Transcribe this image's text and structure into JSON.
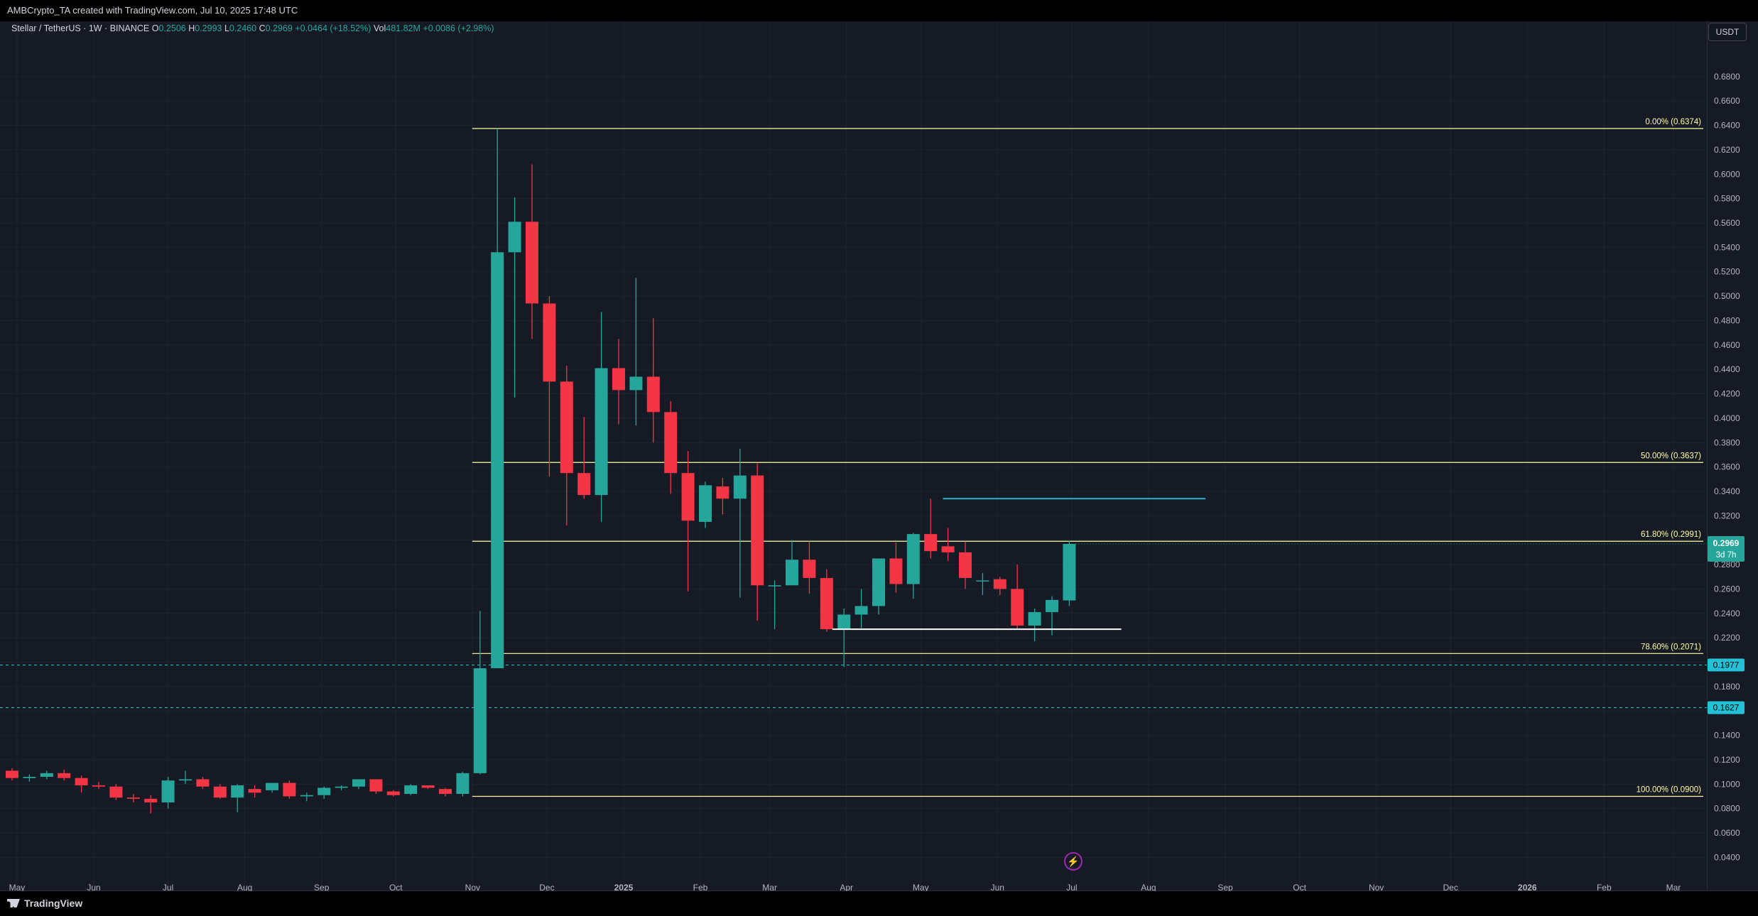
{
  "header": {
    "created_by": "AMBCrypto_TA created with TradingView.com, Jul 10, 2025 17:48 UTC"
  },
  "legend": {
    "symbol": "Stellar / TetherUS · 1W · BINANCE",
    "o_label": "O",
    "o": "0.2506",
    "h_label": "H",
    "h": "0.2993",
    "l_label": "L",
    "l": "0.2460",
    "c_label": "C",
    "c": "0.2969",
    "change": "+0.0464 (+18.52%)",
    "vol_label": "Vol",
    "vol": "481.82M",
    "vol_change": "+0.0086 (+2.98%)"
  },
  "unit_button": "USDT",
  "footer": {
    "brand": "TradingView"
  },
  "colors": {
    "up": "#26a69a",
    "down": "#f23645",
    "fib": "#ffffa0",
    "cyan": "#22c1d6",
    "bg": "#161a25"
  },
  "chart_data": {
    "type": "candlestick",
    "title": "Stellar / TetherUS · 1W · BINANCE",
    "ylim": [
      0.028,
      0.716
    ],
    "y_ticks": [
      "0.6800",
      "0.6600",
      "0.6400",
      "0.6200",
      "0.6000",
      "0.5800",
      "0.5600",
      "0.5400",
      "0.5200",
      "0.5000",
      "0.4800",
      "0.4600",
      "0.4400",
      "0.4200",
      "0.4000",
      "0.3800",
      "0.3600",
      "0.3400",
      "0.3200",
      "0.3000",
      "0.2800",
      "0.2600",
      "0.2400",
      "0.2200",
      "0.2000",
      "0.1800",
      "0.1600",
      "0.1400",
      "0.1200",
      "0.1000",
      "0.0800",
      "0.0600",
      "0.0400"
    ],
    "x_ticks": [
      {
        "label": "May",
        "x": "2024-05-01"
      },
      {
        "label": "Jun",
        "x": "2024-06-01"
      },
      {
        "label": "Jul",
        "x": "2024-07-01"
      },
      {
        "label": "Aug",
        "x": "2024-08-01"
      },
      {
        "label": "Sep",
        "x": "2024-09-01"
      },
      {
        "label": "Oct",
        "x": "2024-10-01"
      },
      {
        "label": "Nov",
        "x": "2024-11-01"
      },
      {
        "label": "Dec",
        "x": "2024-12-01"
      },
      {
        "label": "2025",
        "x": "2025-01-01",
        "bold": true
      },
      {
        "label": "Feb",
        "x": "2025-02-01"
      },
      {
        "label": "Mar",
        "x": "2025-03-01"
      },
      {
        "label": "Apr",
        "x": "2025-04-01"
      },
      {
        "label": "May",
        "x": "2025-05-01"
      },
      {
        "label": "Jun",
        "x": "2025-06-01"
      },
      {
        "label": "Jul",
        "x": "2025-07-01"
      },
      {
        "label": "Aug",
        "x": "2025-08-01"
      },
      {
        "label": "Sep",
        "x": "2025-09-01"
      },
      {
        "label": "Oct",
        "x": "2025-10-01"
      },
      {
        "label": "Nov",
        "x": "2025-11-01"
      },
      {
        "label": "Dec",
        "x": "2025-12-01"
      },
      {
        "label": "2026",
        "x": "2026-01-01",
        "bold": true
      },
      {
        "label": "Feb",
        "x": "2026-02-01"
      },
      {
        "label": "Mar",
        "x": "2026-03-01"
      }
    ],
    "candles": [
      {
        "t": "2024-04-29",
        "o": 0.111,
        "h": 0.113,
        "l": 0.103,
        "c": 0.105
      },
      {
        "t": "2024-05-06",
        "o": 0.105,
        "h": 0.108,
        "l": 0.102,
        "c": 0.106
      },
      {
        "t": "2024-05-13",
        "o": 0.106,
        "h": 0.111,
        "l": 0.104,
        "c": 0.109
      },
      {
        "t": "2024-05-20",
        "o": 0.109,
        "h": 0.112,
        "l": 0.103,
        "c": 0.105
      },
      {
        "t": "2024-05-27",
        "o": 0.105,
        "h": 0.107,
        "l": 0.093,
        "c": 0.099
      },
      {
        "t": "2024-06-03",
        "o": 0.099,
        "h": 0.102,
        "l": 0.096,
        "c": 0.098
      },
      {
        "t": "2024-06-10",
        "o": 0.098,
        "h": 0.1,
        "l": 0.087,
        "c": 0.089
      },
      {
        "t": "2024-06-17",
        "o": 0.089,
        "h": 0.092,
        "l": 0.085,
        "c": 0.088
      },
      {
        "t": "2024-06-24",
        "o": 0.088,
        "h": 0.091,
        "l": 0.076,
        "c": 0.085
      },
      {
        "t": "2024-07-01",
        "o": 0.085,
        "h": 0.106,
        "l": 0.08,
        "c": 0.103
      },
      {
        "t": "2024-07-08",
        "o": 0.103,
        "h": 0.111,
        "l": 0.1,
        "c": 0.104
      },
      {
        "t": "2024-07-15",
        "o": 0.104,
        "h": 0.106,
        "l": 0.096,
        "c": 0.098
      },
      {
        "t": "2024-07-22",
        "o": 0.098,
        "h": 0.1,
        "l": 0.088,
        "c": 0.089
      },
      {
        "t": "2024-07-29",
        "o": 0.089,
        "h": 0.1,
        "l": 0.077,
        "c": 0.099
      },
      {
        "t": "2024-08-05",
        "o": 0.096,
        "h": 0.099,
        "l": 0.089,
        "c": 0.093
      },
      {
        "t": "2024-08-12",
        "o": 0.095,
        "h": 0.1,
        "l": 0.093,
        "c": 0.101
      },
      {
        "t": "2024-08-19",
        "o": 0.101,
        "h": 0.103,
        "l": 0.088,
        "c": 0.09
      },
      {
        "t": "2024-08-26",
        "o": 0.09,
        "h": 0.093,
        "l": 0.086,
        "c": 0.091
      },
      {
        "t": "2024-09-02",
        "o": 0.091,
        "h": 0.098,
        "l": 0.088,
        "c": 0.097
      },
      {
        "t": "2024-09-09",
        "o": 0.097,
        "h": 0.099,
        "l": 0.095,
        "c": 0.098
      },
      {
        "t": "2024-09-16",
        "o": 0.098,
        "h": 0.103,
        "l": 0.096,
        "c": 0.104
      },
      {
        "t": "2024-09-23",
        "o": 0.104,
        "h": 0.104,
        "l": 0.092,
        "c": 0.094
      },
      {
        "t": "2024-09-30",
        "o": 0.094,
        "h": 0.095,
        "l": 0.09,
        "c": 0.091
      },
      {
        "t": "2024-10-07",
        "o": 0.092,
        "h": 0.1,
        "l": 0.091,
        "c": 0.099
      },
      {
        "t": "2024-10-14",
        "o": 0.099,
        "h": 0.099,
        "l": 0.096,
        "c": 0.097
      },
      {
        "t": "2024-10-21",
        "o": 0.096,
        "h": 0.097,
        "l": 0.09,
        "c": 0.092
      },
      {
        "t": "2024-10-28",
        "o": 0.092,
        "h": 0.11,
        "l": 0.09,
        "c": 0.109
      },
      {
        "t": "2024-11-04",
        "o": 0.109,
        "h": 0.242,
        "l": 0.108,
        "c": 0.195
      },
      {
        "t": "2024-11-11",
        "o": 0.195,
        "h": 0.6374,
        "l": 0.195,
        "c": 0.536
      },
      {
        "t": "2024-11-18",
        "o": 0.536,
        "h": 0.581,
        "l": 0.417,
        "c": 0.561
      },
      {
        "t": "2024-11-25",
        "o": 0.561,
        "h": 0.608,
        "l": 0.465,
        "c": 0.494
      },
      {
        "t": "2024-12-02",
        "o": 0.494,
        "h": 0.5,
        "l": 0.352,
        "c": 0.43
      },
      {
        "t": "2024-12-09",
        "o": 0.43,
        "h": 0.443,
        "l": 0.312,
        "c": 0.355
      },
      {
        "t": "2024-12-16",
        "o": 0.355,
        "h": 0.401,
        "l": 0.334,
        "c": 0.337
      },
      {
        "t": "2024-12-23",
        "o": 0.337,
        "h": 0.487,
        "l": 0.315,
        "c": 0.441
      },
      {
        "t": "2024-12-30",
        "o": 0.441,
        "h": 0.465,
        "l": 0.395,
        "c": 0.423
      },
      {
        "t": "2025-01-06",
        "o": 0.423,
        "h": 0.515,
        "l": 0.394,
        "c": 0.434
      },
      {
        "t": "2025-01-13",
        "o": 0.434,
        "h": 0.482,
        "l": 0.38,
        "c": 0.405
      },
      {
        "t": "2025-01-20",
        "o": 0.405,
        "h": 0.414,
        "l": 0.338,
        "c": 0.355
      },
      {
        "t": "2025-01-27",
        "o": 0.355,
        "h": 0.373,
        "l": 0.258,
        "c": 0.316
      },
      {
        "t": "2025-02-03",
        "o": 0.315,
        "h": 0.348,
        "l": 0.31,
        "c": 0.345
      },
      {
        "t": "2025-02-10",
        "o": 0.344,
        "h": 0.351,
        "l": 0.321,
        "c": 0.334
      },
      {
        "t": "2025-02-17",
        "o": 0.334,
        "h": 0.375,
        "l": 0.253,
        "c": 0.353
      },
      {
        "t": "2025-02-24",
        "o": 0.353,
        "h": 0.363,
        "l": 0.234,
        "c": 0.263
      },
      {
        "t": "2025-03-03",
        "o": 0.263,
        "h": 0.267,
        "l": 0.227,
        "c": 0.263
      },
      {
        "t": "2025-03-10",
        "o": 0.263,
        "h": 0.3,
        "l": 0.263,
        "c": 0.284
      },
      {
        "t": "2025-03-17",
        "o": 0.284,
        "h": 0.299,
        "l": 0.256,
        "c": 0.269
      },
      {
        "t": "2025-03-24",
        "o": 0.269,
        "h": 0.276,
        "l": 0.225,
        "c": 0.227
      },
      {
        "t": "2025-03-31",
        "o": 0.227,
        "h": 0.244,
        "l": 0.196,
        "c": 0.239
      },
      {
        "t": "2025-04-07",
        "o": 0.239,
        "h": 0.26,
        "l": 0.228,
        "c": 0.246
      },
      {
        "t": "2025-04-14",
        "o": 0.246,
        "h": 0.285,
        "l": 0.239,
        "c": 0.285
      },
      {
        "t": "2025-04-21",
        "o": 0.285,
        "h": 0.298,
        "l": 0.257,
        "c": 0.264
      },
      {
        "t": "2025-04-28",
        "o": 0.264,
        "h": 0.306,
        "l": 0.252,
        "c": 0.305
      },
      {
        "t": "2025-05-05",
        "o": 0.305,
        "h": 0.334,
        "l": 0.285,
        "c": 0.291
      },
      {
        "t": "2025-05-12",
        "o": 0.295,
        "h": 0.31,
        "l": 0.283,
        "c": 0.29
      },
      {
        "t": "2025-05-19",
        "o": 0.29,
        "h": 0.299,
        "l": 0.26,
        "c": 0.269
      },
      {
        "t": "2025-05-26",
        "o": 0.267,
        "h": 0.273,
        "l": 0.255,
        "c": 0.267
      },
      {
        "t": "2025-06-02",
        "o": 0.268,
        "h": 0.27,
        "l": 0.255,
        "c": 0.26
      },
      {
        "t": "2025-06-09",
        "o": 0.26,
        "h": 0.28,
        "l": 0.227,
        "c": 0.23
      },
      {
        "t": "2025-06-16",
        "o": 0.23,
        "h": 0.244,
        "l": 0.217,
        "c": 0.241
      },
      {
        "t": "2025-06-23",
        "o": 0.241,
        "h": 0.254,
        "l": 0.222,
        "c": 0.251
      },
      {
        "t": "2025-06-30",
        "o": 0.2506,
        "h": 0.2993,
        "l": 0.246,
        "c": 0.2969
      }
    ],
    "fib_levels": [
      {
        "label": "0.00% (0.6374)",
        "value": 0.6374
      },
      {
        "label": "50.00% (0.3637)",
        "value": 0.3637
      },
      {
        "label": "61.80% (0.2991)",
        "value": 0.2991
      },
      {
        "label": "78.60% (0.2071)",
        "value": 0.2071
      },
      {
        "label": "100.00% (0.0900)",
        "value": 0.09
      }
    ],
    "horizontal_levels": [
      {
        "label": "0.1977",
        "value": 0.1977
      },
      {
        "label": "0.1627",
        "value": 0.1627
      }
    ],
    "resistance_line": {
      "value": 0.334,
      "from": "2025-05-12",
      "to": "2025-08-24"
    },
    "support_line": {
      "value": 0.227,
      "from": "2025-03-24",
      "to": "2025-07-21"
    },
    "last_price": {
      "label": "0.2969",
      "countdown": "3d 7h"
    }
  }
}
